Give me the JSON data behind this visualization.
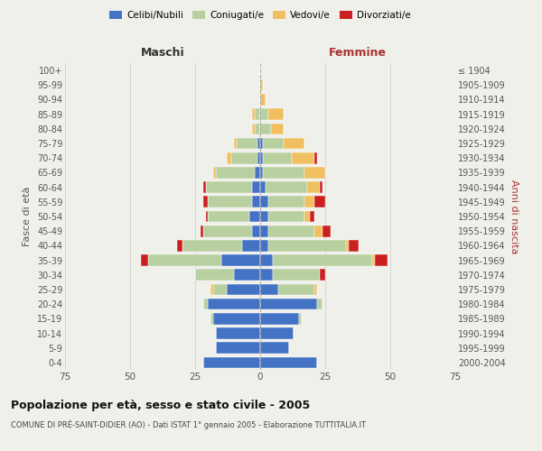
{
  "age_groups": [
    "100+",
    "95-99",
    "90-94",
    "85-89",
    "80-84",
    "75-79",
    "70-74",
    "65-69",
    "60-64",
    "55-59",
    "50-54",
    "45-49",
    "40-44",
    "35-39",
    "30-34",
    "25-29",
    "20-24",
    "15-19",
    "10-14",
    "5-9",
    "0-4"
  ],
  "birth_years": [
    "≤ 1904",
    "1905-1909",
    "1910-1914",
    "1915-1919",
    "1920-1924",
    "1925-1929",
    "1930-1934",
    "1935-1939",
    "1940-1944",
    "1945-1949",
    "1950-1954",
    "1955-1959",
    "1960-1964",
    "1965-1969",
    "1970-1974",
    "1975-1979",
    "1980-1984",
    "1985-1989",
    "1990-1994",
    "1995-1999",
    "2000-2004"
  ],
  "colors": {
    "celibi": "#4472c4",
    "coniugati": "#b8d0a0",
    "vedovi": "#f0c060",
    "divorziati": "#cc2020"
  },
  "male": {
    "celibi": [
      0,
      0,
      0,
      0,
      0,
      1,
      1,
      2,
      3,
      3,
      4,
      3,
      7,
      15,
      10,
      13,
      20,
      18,
      17,
      17,
      22
    ],
    "coniugati": [
      0,
      0,
      0,
      2,
      2,
      8,
      10,
      15,
      18,
      17,
      16,
      19,
      23,
      28,
      15,
      5,
      2,
      1,
      0,
      0,
      0
    ],
    "vedovi": [
      0,
      0,
      0,
      1,
      1,
      1,
      2,
      1,
      0,
      0,
      0,
      0,
      0,
      0,
      0,
      1,
      0,
      0,
      0,
      0,
      0
    ],
    "divorziati": [
      0,
      0,
      0,
      0,
      0,
      0,
      0,
      0,
      1,
      2,
      1,
      1,
      2,
      3,
      0,
      0,
      0,
      0,
      0,
      0,
      0
    ]
  },
  "female": {
    "nubili": [
      0,
      0,
      0,
      0,
      0,
      1,
      1,
      1,
      2,
      3,
      3,
      3,
      3,
      5,
      5,
      7,
      22,
      15,
      13,
      11,
      22
    ],
    "coniugate": [
      0,
      0,
      0,
      3,
      4,
      8,
      11,
      16,
      16,
      14,
      14,
      18,
      30,
      38,
      18,
      14,
      2,
      1,
      0,
      0,
      0
    ],
    "vedove": [
      0,
      1,
      2,
      6,
      5,
      8,
      9,
      8,
      5,
      4,
      2,
      3,
      1,
      1,
      0,
      1,
      0,
      0,
      0,
      0,
      0
    ],
    "divorziate": [
      0,
      0,
      0,
      0,
      0,
      0,
      1,
      0,
      1,
      4,
      2,
      3,
      4,
      5,
      2,
      0,
      0,
      0,
      0,
      0,
      0
    ]
  },
  "xlim": 75,
  "title": "Popolazione per età, sesso e stato civile - 2005",
  "subtitle": "COMUNE DI PRÉ-SAINT-DIDIER (AO) - Dati ISTAT 1° gennaio 2005 - Elaborazione TUTTITALIA.IT",
  "ylabel_left": "Fasce di età",
  "ylabel_right": "Anni di nascita",
  "xlabel_left": "Maschi",
  "xlabel_right": "Femmine",
  "bg_color": "#f0f0eb",
  "grid_color": "#cccccc",
  "legend_labels": [
    "Celibi/Nubili",
    "Coniugati/e",
    "Vedovi/e",
    "Divorziati/e"
  ]
}
